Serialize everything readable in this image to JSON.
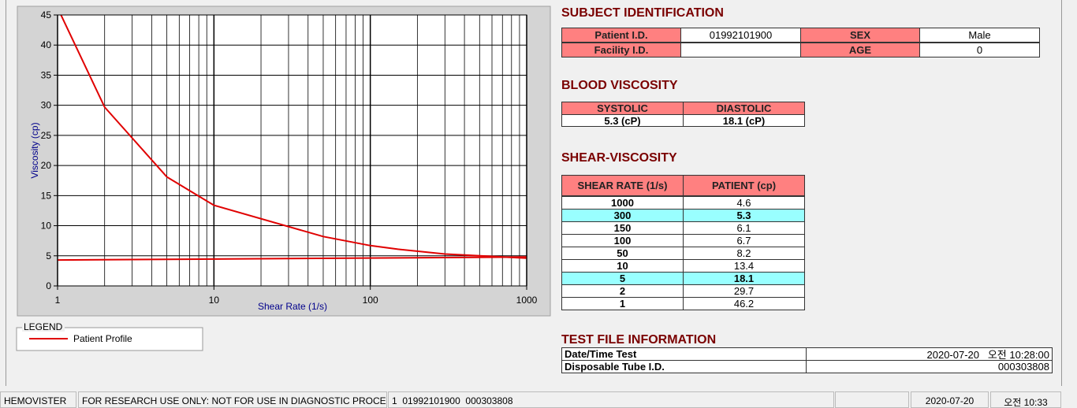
{
  "chart_data": {
    "type": "line",
    "xlabel": "Shear Rate (1/s)",
    "ylabel": "Viscosity (cp)",
    "log_x": true,
    "xlim": [
      1,
      1000
    ],
    "ylim": [
      0,
      45
    ],
    "xticks": [
      1,
      10,
      100,
      1000
    ],
    "yticks": [
      0,
      5,
      10,
      15,
      20,
      25,
      30,
      35,
      40,
      45
    ],
    "xminor": [
      2,
      3,
      4,
      5,
      6,
      7,
      8,
      9,
      20,
      30,
      40,
      50,
      60,
      70,
      80,
      90,
      200,
      300,
      400,
      500,
      600,
      700,
      800,
      900
    ],
    "grid": true,
    "legend_title": "LEGEND",
    "series": [
      {
        "name": "Patient Profile",
        "color": "#e00000",
        "x": [
          1,
          2,
          5,
          10,
          50,
          100,
          150,
          300,
          1000
        ],
        "values": [
          46.2,
          29.7,
          18.1,
          13.4,
          8.2,
          6.7,
          6.1,
          5.3,
          4.6
        ]
      },
      {
        "color": "#e00000",
        "x": [
          1,
          1000
        ],
        "values": [
          4.3,
          4.8
        ]
      }
    ]
  },
  "subject": {
    "title": "SUBJECT IDENTIFICATION",
    "fields": [
      {
        "label": "Patient I.D.",
        "value": "01992101900"
      },
      {
        "label": "SEX",
        "value": "Male"
      },
      {
        "label": "Facility I.D."
      },
      {
        "label": "AGE",
        "value": "0"
      }
    ]
  },
  "blood_viscosity": {
    "title": "BLOOD VISCOSITY",
    "headers": [
      "SYSTOLIC",
      "DIASTOLIC"
    ],
    "values": [
      "5.3 (cP)",
      "18.1 (cP)"
    ]
  },
  "shear_viscosity": {
    "title": "SHEAR-VISCOSITY",
    "headers": [
      "SHEAR RATE (1/s)",
      "PATIENT (cp)"
    ],
    "rows": [
      [
        "1000",
        "4.6"
      ],
      [
        "300",
        "5.3"
      ],
      [
        "150",
        "6.1"
      ],
      [
        "100",
        "6.7"
      ],
      [
        "50",
        "8.2"
      ],
      [
        "10",
        "13.4"
      ],
      [
        "5",
        "18.1"
      ],
      [
        "2",
        "29.7"
      ],
      [
        "1",
        "46.2"
      ]
    ],
    "highlight": [
      1,
      6
    ]
  },
  "test_file": {
    "title": "TEST FILE INFORMATION",
    "rows": [
      [
        "Date/Time Test",
        "2020-07-20   오전 10:28:00"
      ],
      [
        "Disposable Tube I.D.",
        "000303808"
      ]
    ]
  },
  "status_bar": [
    "HEMOVISTER",
    "FOR RESEARCH USE ONLY: NOT FOR USE IN DIAGNOSTIC PROCEDURES",
    "1  01992101900  000303808",
    "2020-07-20",
    "오전 10:33"
  ]
}
